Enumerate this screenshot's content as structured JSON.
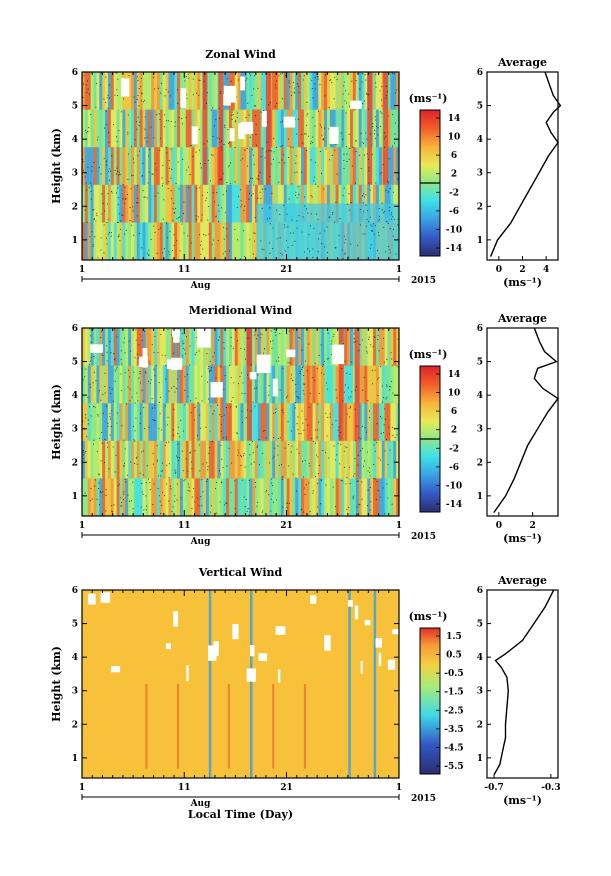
{
  "chart_data": [
    {
      "type": "heatmap",
      "title": "Zonal Wind",
      "ylabel": "Height (km)",
      "xticks": [
        "1",
        "11",
        "21",
        "1"
      ],
      "month_label": "Aug",
      "year_label": "2015",
      "yticks": [
        "1",
        "2",
        "3",
        "4",
        "5",
        "6"
      ],
      "ylim": [
        0.4,
        6
      ],
      "colorbar": {
        "unit": "(ms⁻¹)",
        "labels": [
          "14",
          "10",
          "6",
          "2",
          "-2",
          "-6",
          "-10",
          "-14"
        ],
        "range": [
          -16,
          16
        ]
      },
      "profile": {
        "title": "Average",
        "xlabel": "(ms⁻¹)",
        "xticks": [
          "0",
          "2",
          "4"
        ],
        "xlim": [
          -1,
          5
        ],
        "yticks": [
          "1",
          "2",
          "3",
          "4",
          "5",
          "6"
        ],
        "heights": [
          0.5,
          1.0,
          1.5,
          2.0,
          2.5,
          3.0,
          3.5,
          3.9,
          4.2,
          4.5,
          4.8,
          5.0,
          5.3,
          5.6,
          6.0
        ],
        "values": [
          -0.7,
          -0.1,
          1.0,
          1.8,
          2.6,
          3.4,
          4.2,
          5.0,
          4.4,
          4.0,
          4.6,
          5.2,
          4.6,
          4.3,
          3.9
        ]
      }
    },
    {
      "type": "heatmap",
      "title": "Meridional Wind",
      "ylabel": "Height (km)",
      "xticks": [
        "1",
        "11",
        "21",
        "1"
      ],
      "month_label": "Aug",
      "year_label": "2015",
      "yticks": [
        "1",
        "2",
        "3",
        "4",
        "5",
        "6"
      ],
      "ylim": [
        0.4,
        6
      ],
      "colorbar": {
        "unit": "(ms⁻¹)",
        "labels": [
          "14",
          "10",
          "6",
          "2",
          "-2",
          "-6",
          "-10",
          "-14"
        ],
        "range": [
          -16,
          16
        ]
      },
      "profile": {
        "title": "Average",
        "xlabel": "(ms⁻¹)",
        "xticks": [
          "0",
          "2"
        ],
        "xlim": [
          -0.7,
          3.5
        ],
        "yticks": [
          "1",
          "2",
          "3",
          "4",
          "5",
          "6"
        ],
        "heights": [
          0.5,
          1.0,
          1.5,
          2.0,
          2.5,
          3.0,
          3.5,
          3.9,
          4.2,
          4.5,
          4.8,
          5.0,
          5.3,
          5.6,
          6.0
        ],
        "values": [
          -0.3,
          0.4,
          0.9,
          1.3,
          1.7,
          2.3,
          2.9,
          3.5,
          2.6,
          2.1,
          2.3,
          3.4,
          2.7,
          2.4,
          2.1
        ]
      }
    },
    {
      "type": "heatmap",
      "title": "Vertical Wind",
      "ylabel": "Height (km)",
      "xlabel": "Local Time (Day)",
      "xticks": [
        "1",
        "11",
        "21",
        "1"
      ],
      "month_label": "Aug",
      "year_label": "2015",
      "yticks": [
        "1",
        "2",
        "3",
        "4",
        "5",
        "6"
      ],
      "ylim": [
        0.4,
        6
      ],
      "colorbar": {
        "unit": "(ms⁻¹)",
        "labels": [
          "1.5",
          "0.5",
          "-0.5",
          "-1.5",
          "-2.5",
          "-3.5",
          "-4.5",
          "-5.5"
        ],
        "range": [
          -6,
          2
        ]
      },
      "profile": {
        "title": "Average",
        "xlabel": "(ms⁻¹)",
        "xticks": [
          "-0.7",
          "-0.3"
        ],
        "xlim": [
          -0.75,
          -0.25
        ],
        "yticks": [
          "1",
          "2",
          "3",
          "4",
          "5",
          "6"
        ],
        "heights": [
          0.5,
          0.8,
          1.2,
          1.6,
          2.0,
          2.5,
          3.0,
          3.4,
          3.7,
          3.9,
          4.1,
          4.5,
          5.0,
          5.5,
          6.0
        ],
        "values": [
          -0.7,
          -0.66,
          -0.64,
          -0.62,
          -0.62,
          -0.61,
          -0.6,
          -0.61,
          -0.65,
          -0.69,
          -0.62,
          -0.5,
          -0.42,
          -0.34,
          -0.28
        ]
      }
    }
  ]
}
